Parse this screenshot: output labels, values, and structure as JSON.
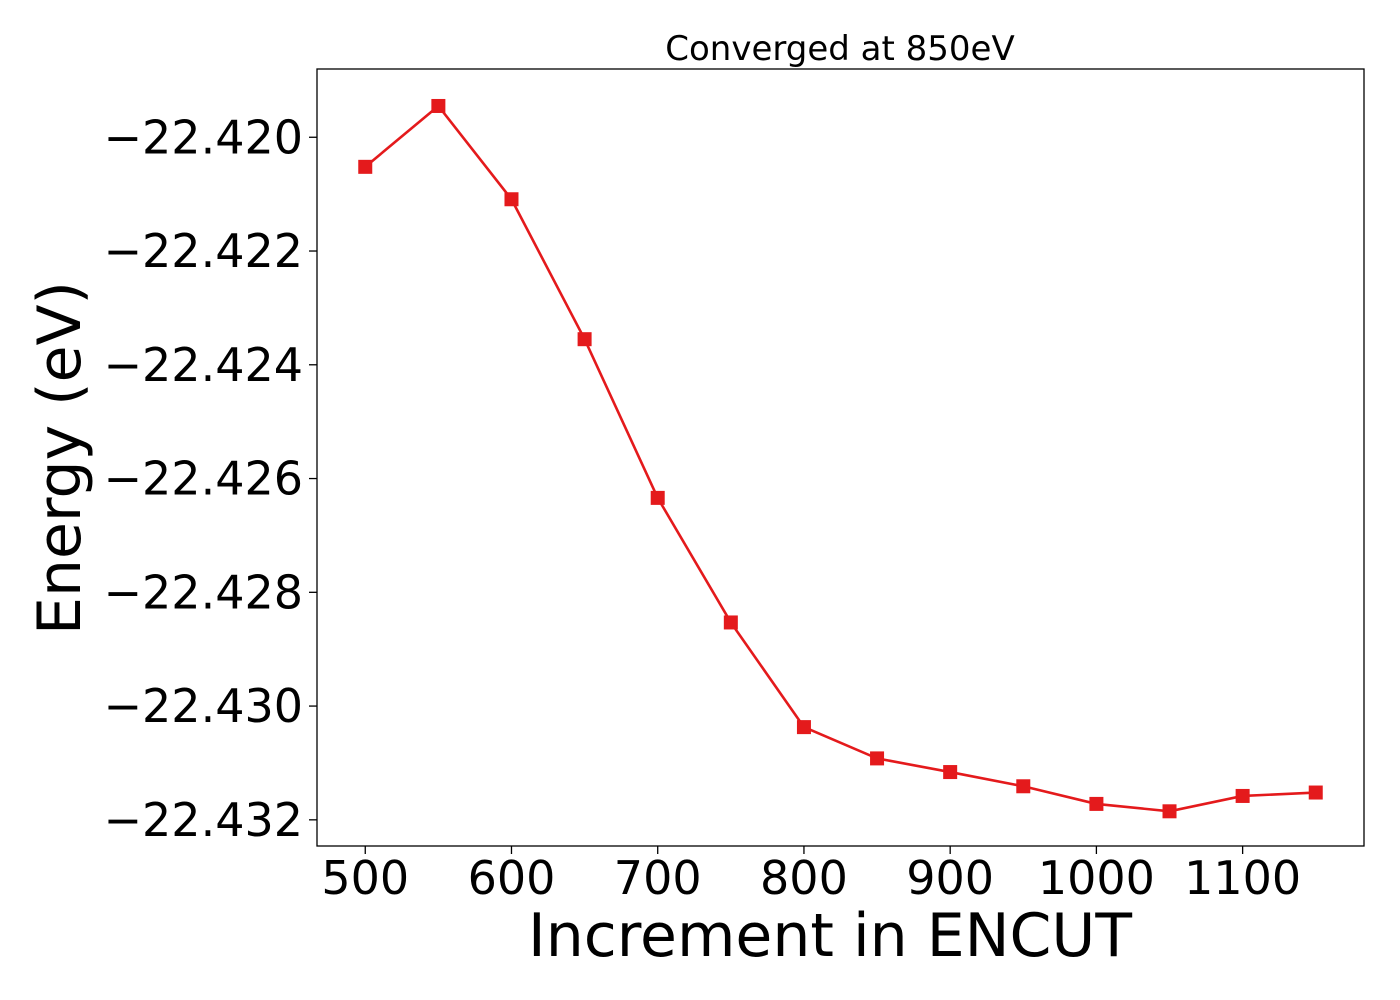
{
  "chart_data": {
    "type": "line",
    "title": "Converged at 850eV",
    "xlabel": "Increment in ENCUT",
    "ylabel": "Energy (eV)",
    "xlim": [
      467,
      1183
    ],
    "ylim": [
      -22.43246,
      -22.4188
    ],
    "xticks": [
      500,
      600,
      700,
      800,
      900,
      1000,
      1100
    ],
    "xtick_labels": [
      "500",
      "600",
      "700",
      "800",
      "900",
      "1000",
      "1100"
    ],
    "yticks": [
      -22.42,
      -22.422,
      -22.424,
      -22.426,
      -22.428,
      -22.43,
      -22.432
    ],
    "ytick_labels": [
      "−22.420",
      "−22.422",
      "−22.424",
      "−22.426",
      "−22.428",
      "−22.430",
      "−22.432"
    ],
    "grid": false,
    "legend": "none",
    "series": [
      {
        "color": "#e41a1c",
        "marker": "square",
        "x": [
          500,
          550,
          600,
          650,
          700,
          750,
          800,
          850,
          900,
          950,
          1000,
          1050,
          1100,
          1150
        ],
        "y": [
          -22.42052,
          -22.41945,
          -22.42109,
          -22.42355,
          -22.42634,
          -22.42853,
          -22.43037,
          -22.43092,
          -22.43116,
          -22.43141,
          -22.43172,
          -22.43185,
          -22.43158,
          -22.43152
        ]
      }
    ]
  }
}
